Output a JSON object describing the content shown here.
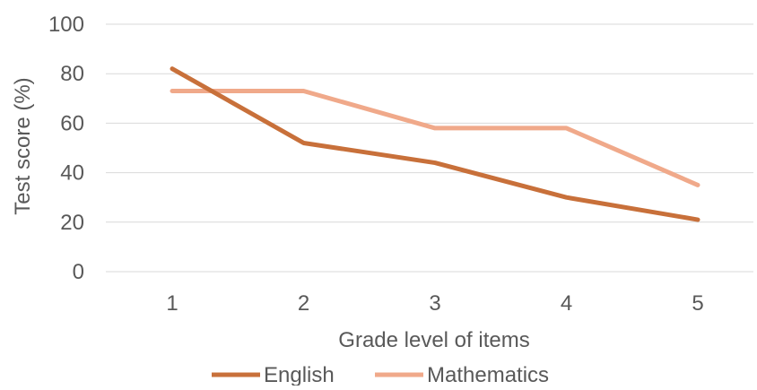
{
  "chart_data": {
    "type": "line",
    "title": "",
    "xlabel": "Grade level of items",
    "ylabel": "Test score (%)",
    "categories": [
      "1",
      "2",
      "3",
      "4",
      "5"
    ],
    "yticks": [
      "0",
      "20",
      "40",
      "60",
      "80",
      "100"
    ],
    "ylim": [
      0,
      100
    ],
    "grid": true,
    "legend_position": "bottom",
    "series": [
      {
        "name": "English",
        "values": [
          82,
          52,
          44,
          30,
          21
        ],
        "color": "#C8703A"
      },
      {
        "name": "Mathematics",
        "values": [
          73,
          73,
          58,
          58,
          35
        ],
        "color": "#F0A98A"
      }
    ],
    "gridline_color": "#D9D9D9"
  }
}
